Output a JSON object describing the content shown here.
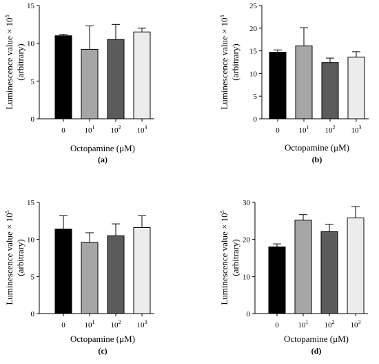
{
  "chart_data": [
    {
      "type": "bar",
      "panel": "(a)",
      "categories": [
        {
          "base": "0",
          "exp": ""
        },
        {
          "base": "10",
          "exp": "1"
        },
        {
          "base": "10",
          "exp": "2"
        },
        {
          "base": "10",
          "exp": "3"
        }
      ],
      "values": [
        11.0,
        9.2,
        10.5,
        11.5
      ],
      "errors": [
        0.2,
        3.1,
        2.0,
        0.5
      ],
      "ylim": [
        0,
        15
      ],
      "yticks": [
        0,
        5,
        10,
        15
      ],
      "ylabel_main": "Luminescence value × 10",
      "ylabel_exp": "5",
      "ylabel_sub": "(arbitrary)",
      "xlabel": "Octopamine (μM)",
      "colors": [
        "#000000",
        "#a6a6a6",
        "#5b5b5b",
        "#ececec"
      ]
    },
    {
      "type": "bar",
      "panel": "(b)",
      "categories": [
        {
          "base": "0",
          "exp": ""
        },
        {
          "base": "10",
          "exp": "1"
        },
        {
          "base": "10",
          "exp": "2"
        },
        {
          "base": "10",
          "exp": "3"
        }
      ],
      "values": [
        14.7,
        16.1,
        12.4,
        13.6
      ],
      "errors": [
        0.5,
        4.0,
        1.0,
        1.2
      ],
      "ylim": [
        0,
        25
      ],
      "yticks": [
        0,
        5,
        10,
        15,
        20,
        25
      ],
      "ylabel_main": "Luminescence value × 10",
      "ylabel_exp": "5",
      "ylabel_sub": "(arbitrary)",
      "xlabel": "Octopamine (μM)",
      "colors": [
        "#000000",
        "#a6a6a6",
        "#5b5b5b",
        "#ececec"
      ]
    },
    {
      "type": "bar",
      "panel": "(c)",
      "categories": [
        {
          "base": "0",
          "exp": ""
        },
        {
          "base": "10",
          "exp": "1"
        },
        {
          "base": "10",
          "exp": "2"
        },
        {
          "base": "10",
          "exp": "3"
        }
      ],
      "values": [
        11.4,
        9.6,
        10.5,
        11.6
      ],
      "errors": [
        1.8,
        1.3,
        1.6,
        1.6
      ],
      "ylim": [
        0,
        15
      ],
      "yticks": [
        0,
        5,
        10,
        15
      ],
      "ylabel_main": "Luminescence value × 10",
      "ylabel_exp": "5",
      "ylabel_sub": "(arbitrary)",
      "xlabel": "Octopamine (μM)",
      "colors": [
        "#000000",
        "#a6a6a6",
        "#5b5b5b",
        "#ececec"
      ]
    },
    {
      "type": "bar",
      "panel": "(d)",
      "categories": [
        {
          "base": "0",
          "exp": ""
        },
        {
          "base": "10",
          "exp": "1"
        },
        {
          "base": "10",
          "exp": "2"
        },
        {
          "base": "10",
          "exp": "3"
        }
      ],
      "values": [
        18.0,
        25.2,
        22.1,
        25.8
      ],
      "errors": [
        0.8,
        1.5,
        2.0,
        3.0
      ],
      "ylim": [
        0,
        30
      ],
      "yticks": [
        0,
        10,
        20,
        30
      ],
      "ylabel_main": "Luminescence value × 10",
      "ylabel_exp": "5",
      "ylabel_sub": "(arbitrary)",
      "xlabel": "Octopamine (μM)",
      "colors": [
        "#000000",
        "#a6a6a6",
        "#5b5b5b",
        "#ececec"
      ]
    }
  ]
}
